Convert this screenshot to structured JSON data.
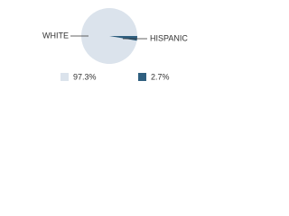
{
  "chart_data": {
    "type": "pie",
    "categories": [
      "WHITE",
      "HISPANIC"
    ],
    "values": [
      97.3,
      2.7
    ],
    "value_labels": [
      "97.3%",
      "2.7%"
    ],
    "colors": [
      "#dbe3ec",
      "#2f5f7f"
    ]
  }
}
